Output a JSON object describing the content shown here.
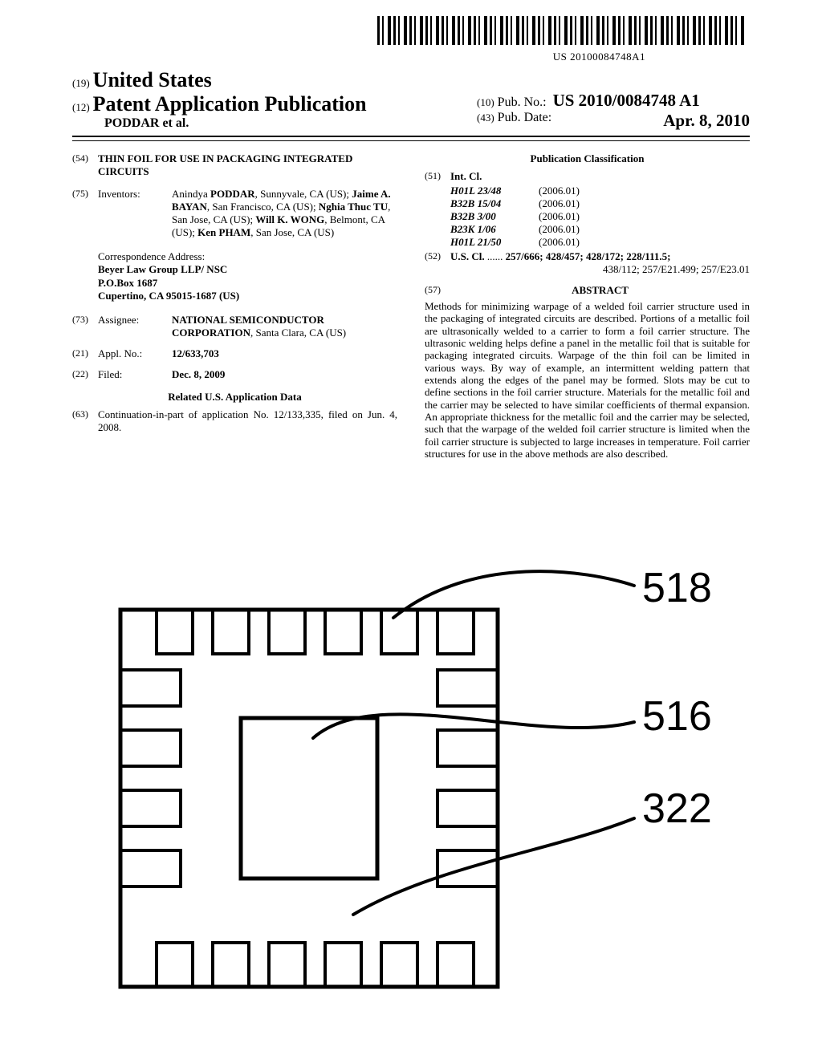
{
  "barcode": {
    "doc_number": "US 20100084748A1"
  },
  "header": {
    "num19": "(19)",
    "country": "United States",
    "num12": "(12)",
    "pub_type": "Patent Application Publication",
    "authors": "PODDAR et al.",
    "num10": "(10)",
    "pub_no_label": "Pub. No.:",
    "pub_no": "US 2010/0084748 A1",
    "num43": "(43)",
    "pub_date_label": "Pub. Date:",
    "pub_date": "Apr. 8, 2010"
  },
  "field54": {
    "num": "(54)",
    "title": "THIN FOIL FOR USE IN PACKAGING INTEGRATED CIRCUITS"
  },
  "field75": {
    "num": "(75)",
    "label": "Inventors:",
    "text": "Anindya PODDAR, Sunnyvale, CA (US); Jaime A. BAYAN, San Francisco, CA (US); Nghia Thuc TU, San Jose, CA (US); Will K. WONG, Belmont, CA (US); Ken PHAM, San Jose, CA (US)"
  },
  "correspondence": {
    "label": "Correspondence Address:",
    "line1": "Beyer Law Group LLP/ NSC",
    "line2": "P.O.Box 1687",
    "line3": "Cupertino, CA 95015-1687 (US)"
  },
  "field73": {
    "num": "(73)",
    "label": "Assignee:",
    "text": "NATIONAL SEMICONDUCTOR CORPORATION, Santa Clara, CA (US)"
  },
  "field21": {
    "num": "(21)",
    "label": "Appl. No.:",
    "text": "12/633,703"
  },
  "field22": {
    "num": "(22)",
    "label": "Filed:",
    "text": "Dec. 8, 2009"
  },
  "related": {
    "header": "Related U.S. Application Data",
    "num": "(63)",
    "text": "Continuation-in-part of application No. 12/133,335, filed on Jun. 4, 2008."
  },
  "classification": {
    "header": "Publication Classification",
    "num51": "(51)",
    "intcl_label": "Int. Cl.",
    "intcl": [
      {
        "code": "H01L 23/48",
        "date": "(2006.01)"
      },
      {
        "code": "B32B 15/04",
        "date": "(2006.01)"
      },
      {
        "code": "B32B 3/00",
        "date": "(2006.01)"
      },
      {
        "code": "B23K 1/06",
        "date": "(2006.01)"
      },
      {
        "code": "H01L 21/50",
        "date": "(2006.01)"
      }
    ],
    "num52": "(52)",
    "uscl_label": "U.S. Cl.",
    "uscl_dots": " ...... ",
    "uscl_line1": "257/666; 428/457; 428/172; 228/111.5;",
    "uscl_line2": "438/112; 257/E21.499; 257/E23.01"
  },
  "abstract": {
    "num": "(57)",
    "label": "ABSTRACT",
    "text": "Methods for minimizing warpage of a welded foil carrier structure used in the packaging of integrated circuits are described. Portions of a metallic foil are ultrasonically welded to a carrier to form a foil carrier structure. The ultrasonic welding helps define a panel in the metallic foil that is suitable for packaging integrated circuits. Warpage of the thin foil can be limited in various ways. By way of example, an intermittent welding pattern that extends along the edges of the panel may be formed. Slots may be cut to define sections in the foil carrier structure. Materials for the metallic foil and the carrier may be selected to have similar coefficients of thermal expansion. An appropriate thickness for the metallic foil and the carrier may be selected, such that the warpage of the welded foil carrier structure is limited when the foil carrier structure is subjected to large increases in temperature. Foil carrier structures for use in the above methods are also described."
  },
  "figure": {
    "labels": {
      "a": "518",
      "b": "516",
      "c": "322"
    },
    "style": {
      "stroke": "#000000",
      "outer_sw": 5,
      "lead_sw": 4,
      "callout_sw": 4,
      "label_fontsize": 52,
      "label_fontweight": "400",
      "label_fontfamily": "Arial, Helvetica, sans-serif"
    }
  }
}
